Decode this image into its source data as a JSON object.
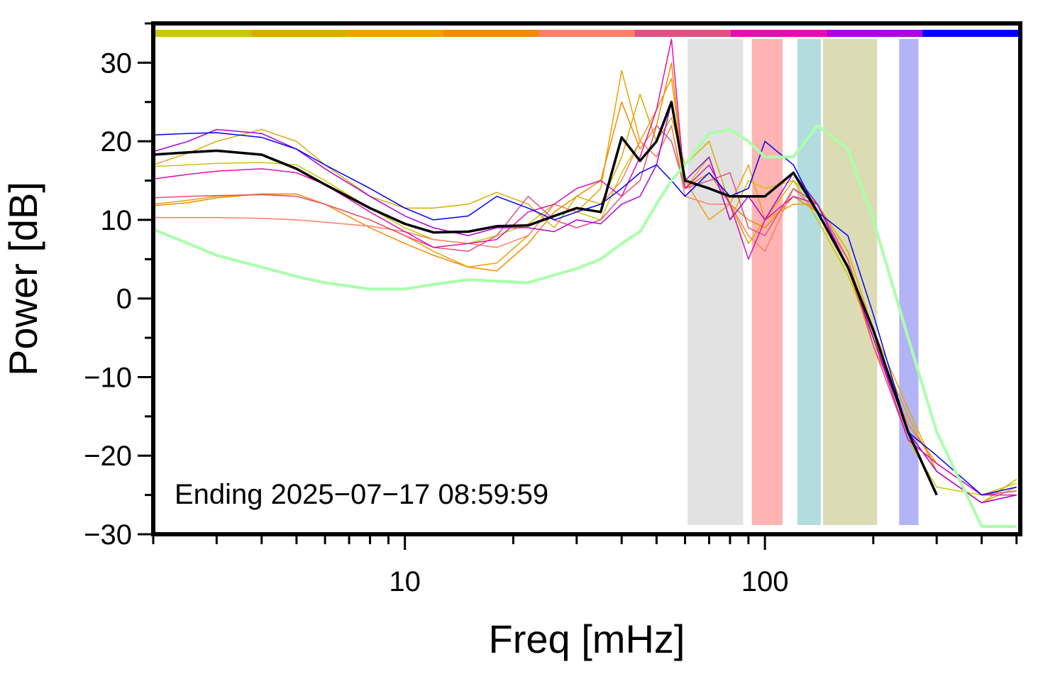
{
  "chart_data": {
    "type": "line",
    "annotation": "Ending 2025−07−17 08:59:59",
    "x_label": "Freq [mHz]",
    "y_label": "Power [dB]",
    "log_x": true,
    "xlim": [
      2,
      512
    ],
    "ylim": [
      -30,
      35
    ],
    "xticks": [
      10,
      100
    ],
    "xminorticks": [
      2,
      3,
      4,
      5,
      6,
      7,
      8,
      9,
      20,
      30,
      40,
      50,
      60,
      70,
      80,
      90,
      200,
      300,
      400,
      500
    ],
    "yticks": [
      {
        "value": -30,
        "label": "−30"
      },
      {
        "value": -20,
        "label": "−20"
      },
      {
        "value": -10,
        "label": "−10"
      },
      0,
      10,
      20,
      30
    ],
    "yminorticks": [
      -25,
      -15,
      -5,
      5,
      15,
      25,
      35
    ],
    "bands": [
      {
        "x": [
          61,
          87
        ],
        "color": "#e2e2e2"
      },
      {
        "x": [
          92,
          112
        ],
        "color": "#ffb3b3"
      },
      {
        "x": [
          123,
          143
        ],
        "color": "#b3dcdf"
      },
      {
        "x": [
          145,
          205
        ],
        "color": "#dcdcb4"
      },
      {
        "x": [
          236,
          267
        ],
        "color": "#b3b3f7"
      }
    ],
    "x": [
      2,
      2.5,
      3,
      4,
      5,
      6,
      8,
      10,
      12,
      15,
      18,
      22,
      26,
      30,
      35,
      40,
      45,
      50,
      55,
      60,
      70,
      80,
      90,
      100,
      120,
      140,
      170,
      200,
      250,
      300,
      400,
      500
    ],
    "series": [
      {
        "color": "#c8c800",
        "width": 1.5,
        "values": [
          16.8,
          17,
          17.2,
          17.3,
          17,
          15,
          11.5,
          9,
          7.5,
          7,
          8,
          9.5,
          12,
          11,
          10,
          16,
          20,
          18,
          22,
          14,
          18,
          10,
          15,
          14,
          15,
          10,
          3,
          -5,
          -18,
          -24,
          -25,
          -23.5
        ]
      },
      {
        "color": "#d9ac00",
        "width": 1.5,
        "values": [
          17,
          18.5,
          20,
          21.5,
          20,
          17,
          13,
          11.5,
          11.5,
          12,
          13.5,
          12,
          9,
          13,
          12,
          18,
          26,
          20,
          23,
          17,
          20,
          12,
          7,
          10,
          15,
          12,
          6,
          -4,
          -14,
          -22,
          -26,
          -23
        ]
      },
      {
        "color": "#f0a000",
        "width": 1.5,
        "values": [
          12,
          12.5,
          13,
          13.3,
          13,
          12,
          10,
          8,
          6,
          4,
          4.5,
          8,
          12,
          11,
          14,
          29,
          20,
          24,
          28,
          15,
          10,
          12,
          17,
          10,
          12,
          12,
          4,
          -5,
          -15,
          -22,
          -26,
          -24
        ]
      },
      {
        "color": "#f58a00",
        "width": 1.5,
        "values": [
          11.8,
          12.2,
          12.8,
          13.3,
          13.3,
          12,
          9,
          7,
          5.5,
          4,
          3.5,
          7,
          11,
          13,
          15,
          25,
          19,
          22,
          30,
          14,
          16,
          12,
          10,
          9,
          13,
          11,
          4,
          -6,
          -16,
          -21,
          -25,
          -24.5
        ]
      },
      {
        "color": "#ff7f66",
        "width": 1.5,
        "values": [
          10.3,
          10.3,
          10.3,
          10.2,
          10,
          9.7,
          9.2,
          8.5,
          7.5,
          7,
          6.5,
          8,
          12,
          11,
          12,
          15,
          20,
          18,
          22,
          13,
          12,
          12,
          8,
          6,
          14,
          11,
          5,
          -5,
          -17,
          -22,
          -26,
          -25
        ]
      },
      {
        "color": "#e05080",
        "width": 1.5,
        "values": [
          12.8,
          13,
          13.1,
          13.2,
          13,
          12,
          10,
          8,
          6.5,
          6,
          8,
          13,
          10,
          9,
          10,
          13,
          15,
          22,
          20,
          14,
          15,
          16,
          9,
          8,
          14,
          12,
          5,
          -6,
          -18,
          -21,
          -25,
          -24.5
        ]
      },
      {
        "color": "#e010b0",
        "width": 1.5,
        "values": [
          15.2,
          15.8,
          16.2,
          16.5,
          16,
          14.5,
          11,
          8.5,
          6.5,
          7,
          7.5,
          11,
          12,
          14,
          15,
          13,
          18,
          24,
          33,
          14,
          17,
          12,
          5,
          10,
          13,
          12,
          4,
          -5,
          -18,
          -21,
          -25,
          -25
        ]
      },
      {
        "color": "#b000e0",
        "width": 1.5,
        "values": [
          18.7,
          20,
          21.5,
          21,
          19,
          16.5,
          13,
          10.5,
          9,
          8,
          9,
          9,
          8.5,
          10,
          9.5,
          12,
          13,
          17,
          25,
          15,
          18,
          10,
          13,
          10,
          16,
          12,
          4,
          -5,
          -17,
          -22,
          -26,
          -25
        ]
      },
      {
        "color": "#0000ff",
        "width": 1.5,
        "values": [
          20.8,
          21,
          21.1,
          20.5,
          19,
          17,
          14,
          11.5,
          10,
          10.5,
          13,
          11.5,
          10,
          11,
          12,
          14,
          16,
          17,
          15,
          13,
          16,
          13,
          14,
          20,
          17,
          11,
          8,
          -2,
          -17,
          -20,
          -25,
          -24
        ]
      },
      {
        "color": "#aaffaa",
        "width": 4,
        "values": [
          8.8,
          7,
          5.5,
          4,
          2.8,
          2,
          1.2,
          1.2,
          1.8,
          2.4,
          2.2,
          2,
          3,
          3.8,
          5,
          7,
          8.5,
          12,
          15,
          17,
          21,
          21.5,
          20,
          18,
          18,
          22,
          19,
          10,
          -5,
          -17,
          -29,
          -29
        ]
      },
      {
        "color": "#000000",
        "width": 3.5,
        "values": [
          18.3,
          18.6,
          18.8,
          18.3,
          16.5,
          14.5,
          11.5,
          9.5,
          8.4,
          8.5,
          9.2,
          9.3,
          10.5,
          11.5,
          11,
          20.5,
          17.5,
          20,
          25,
          15,
          14,
          13,
          13,
          13,
          16,
          11,
          4,
          -4,
          -17,
          -25,
          null,
          null
        ]
      }
    ],
    "strip_series": [
      0,
      1,
      2,
      3,
      4,
      5,
      6,
      7,
      8
    ]
  }
}
